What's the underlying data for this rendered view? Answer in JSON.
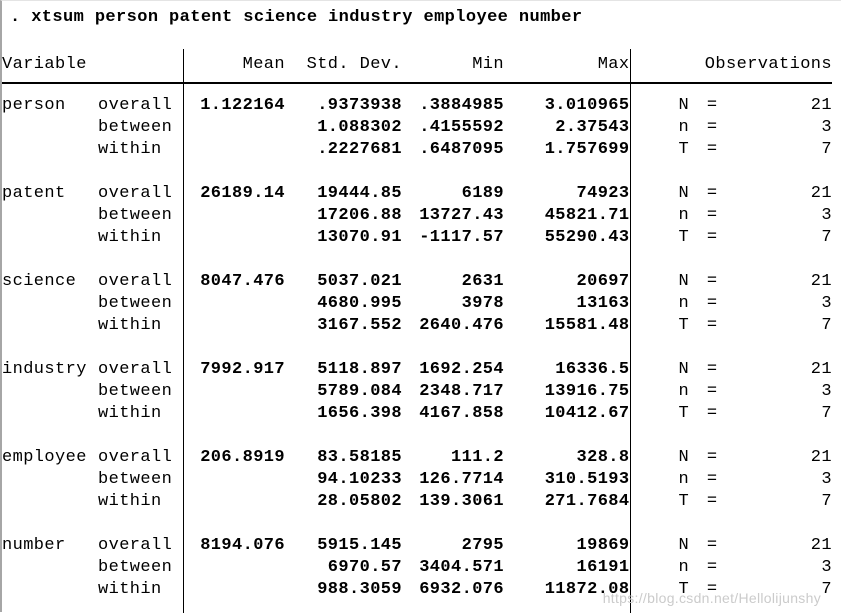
{
  "command": ". xtsum person patent science industry employee number",
  "table": {
    "headers": {
      "variable": "Variable",
      "mean": "Mean",
      "std_dev": "Std. Dev.",
      "min": "Min",
      "max": "Max",
      "observations": "Observations"
    },
    "variables": [
      {
        "name": "person",
        "rows": [
          {
            "label": "overall",
            "mean": "1.122164",
            "std_dev": ".9373938",
            "min": ".3884985",
            "max": "3.010965",
            "obs_label": "N =",
            "obs_value": "21"
          },
          {
            "label": "between",
            "mean": "",
            "std_dev": "1.088302",
            "min": ".4155592",
            "max": "2.37543",
            "obs_label": "n =",
            "obs_value": "3"
          },
          {
            "label": "within",
            "mean": "",
            "std_dev": ".2227681",
            "min": ".6487095",
            "max": "1.757699",
            "obs_label": "T =",
            "obs_value": "7"
          }
        ]
      },
      {
        "name": "patent",
        "rows": [
          {
            "label": "overall",
            "mean": "26189.14",
            "std_dev": "19444.85",
            "min": "6189",
            "max": "74923",
            "obs_label": "N =",
            "obs_value": "21"
          },
          {
            "label": "between",
            "mean": "",
            "std_dev": "17206.88",
            "min": "13727.43",
            "max": "45821.71",
            "obs_label": "n =",
            "obs_value": "3"
          },
          {
            "label": "within",
            "mean": "",
            "std_dev": "13070.91",
            "min": "-1117.57",
            "max": "55290.43",
            "obs_label": "T =",
            "obs_value": "7"
          }
        ]
      },
      {
        "name": "science",
        "rows": [
          {
            "label": "overall",
            "mean": "8047.476",
            "std_dev": "5037.021",
            "min": "2631",
            "max": "20697",
            "obs_label": "N =",
            "obs_value": "21"
          },
          {
            "label": "between",
            "mean": "",
            "std_dev": "4680.995",
            "min": "3978",
            "max": "13163",
            "obs_label": "n =",
            "obs_value": "3"
          },
          {
            "label": "within",
            "mean": "",
            "std_dev": "3167.552",
            "min": "2640.476",
            "max": "15581.48",
            "obs_label": "T =",
            "obs_value": "7"
          }
        ]
      },
      {
        "name": "industry",
        "rows": [
          {
            "label": "overall",
            "mean": "7992.917",
            "std_dev": "5118.897",
            "min": "1692.254",
            "max": "16336.5",
            "obs_label": "N =",
            "obs_value": "21"
          },
          {
            "label": "between",
            "mean": "",
            "std_dev": "5789.084",
            "min": "2348.717",
            "max": "13916.75",
            "obs_label": "n =",
            "obs_value": "3"
          },
          {
            "label": "within",
            "mean": "",
            "std_dev": "1656.398",
            "min": "4167.858",
            "max": "10412.67",
            "obs_label": "T =",
            "obs_value": "7"
          }
        ]
      },
      {
        "name": "employee",
        "rows": [
          {
            "label": "overall",
            "mean": "206.8919",
            "std_dev": "83.58185",
            "min": "111.2",
            "max": "328.8",
            "obs_label": "N =",
            "obs_value": "21"
          },
          {
            "label": "between",
            "mean": "",
            "std_dev": "94.10233",
            "min": "126.7714",
            "max": "310.5193",
            "obs_label": "n =",
            "obs_value": "3"
          },
          {
            "label": "within",
            "mean": "",
            "std_dev": "28.05802",
            "min": "139.3061",
            "max": "271.7684",
            "obs_label": "T =",
            "obs_value": "7"
          }
        ]
      },
      {
        "name": "number",
        "rows": [
          {
            "label": "overall",
            "mean": "8194.076",
            "std_dev": "5915.145",
            "min": "2795",
            "max": "19869",
            "obs_label": "N =",
            "obs_value": "21"
          },
          {
            "label": "between",
            "mean": "",
            "std_dev": "6970.57",
            "min": "3404.571",
            "max": "16191",
            "obs_label": "n =",
            "obs_value": "3"
          },
          {
            "label": "within",
            "mean": "",
            "std_dev": "988.3059",
            "min": "6932.076",
            "max": "11872.08",
            "obs_label": "T =",
            "obs_value": "7"
          }
        ]
      }
    ]
  },
  "watermark": "https://blog.csdn.net/Hellolijunshy"
}
